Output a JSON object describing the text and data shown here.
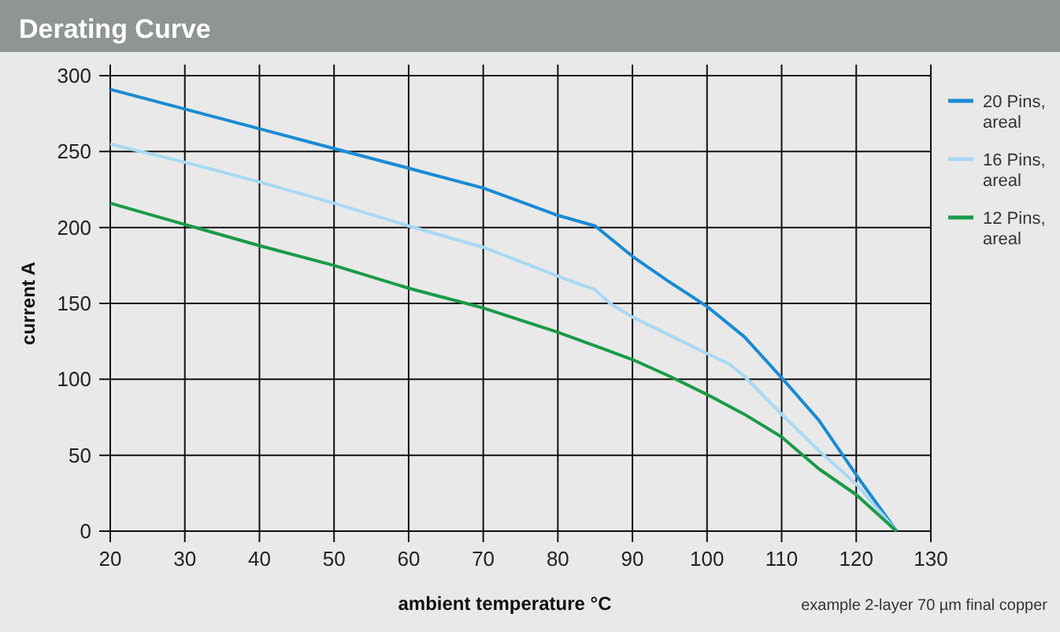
{
  "chart_data": {
    "type": "line",
    "title": "Derating Curve",
    "xlabel": "ambient temperature °C",
    "ylabel": "current A",
    "annotations": [
      "example 2-layer 70 µm final copper"
    ],
    "xlim": [
      20,
      130
    ],
    "xticks": [
      20,
      30,
      40,
      50,
      60,
      70,
      80,
      90,
      100,
      110,
      120,
      130
    ],
    "ylim": [
      0,
      300
    ],
    "yticks": [
      0,
      50,
      100,
      150,
      200,
      250,
      300
    ],
    "grid": true,
    "legend": "right",
    "marker": "none",
    "line_style": "solid",
    "series": [
      {
        "name": "20 Pins, areal",
        "color": "#1a8ad4",
        "x": [
          20,
          30,
          40,
          50,
          60,
          70,
          80,
          85,
          90,
          95,
          100,
          105,
          110,
          115,
          120,
          125.4
        ],
        "values": [
          291,
          278,
          265,
          252,
          239,
          226,
          208,
          201,
          181,
          164,
          148,
          128,
          101,
          73,
          37,
          0
        ]
      },
      {
        "name": "16 Pins, areal",
        "color": "#a8d8f5",
        "x": [
          20,
          30,
          40,
          50,
          60,
          70,
          80,
          85,
          87,
          90,
          100,
          103,
          105,
          110,
          115,
          120,
          125.4
        ],
        "values": [
          255,
          243,
          230,
          216,
          201,
          187,
          168,
          159,
          150,
          141,
          117,
          110,
          102,
          77,
          53,
          31,
          0
        ]
      },
      {
        "name": "12 Pins, areal",
        "color": "#1a9a48",
        "x": [
          20,
          30,
          40,
          50,
          60,
          70,
          80,
          90,
          95,
          100,
          105,
          110,
          115,
          120,
          125.4
        ],
        "values": [
          216,
          202,
          188,
          175,
          160,
          147,
          131,
          113,
          102,
          90,
          77,
          62,
          41,
          24,
          0
        ]
      }
    ]
  }
}
